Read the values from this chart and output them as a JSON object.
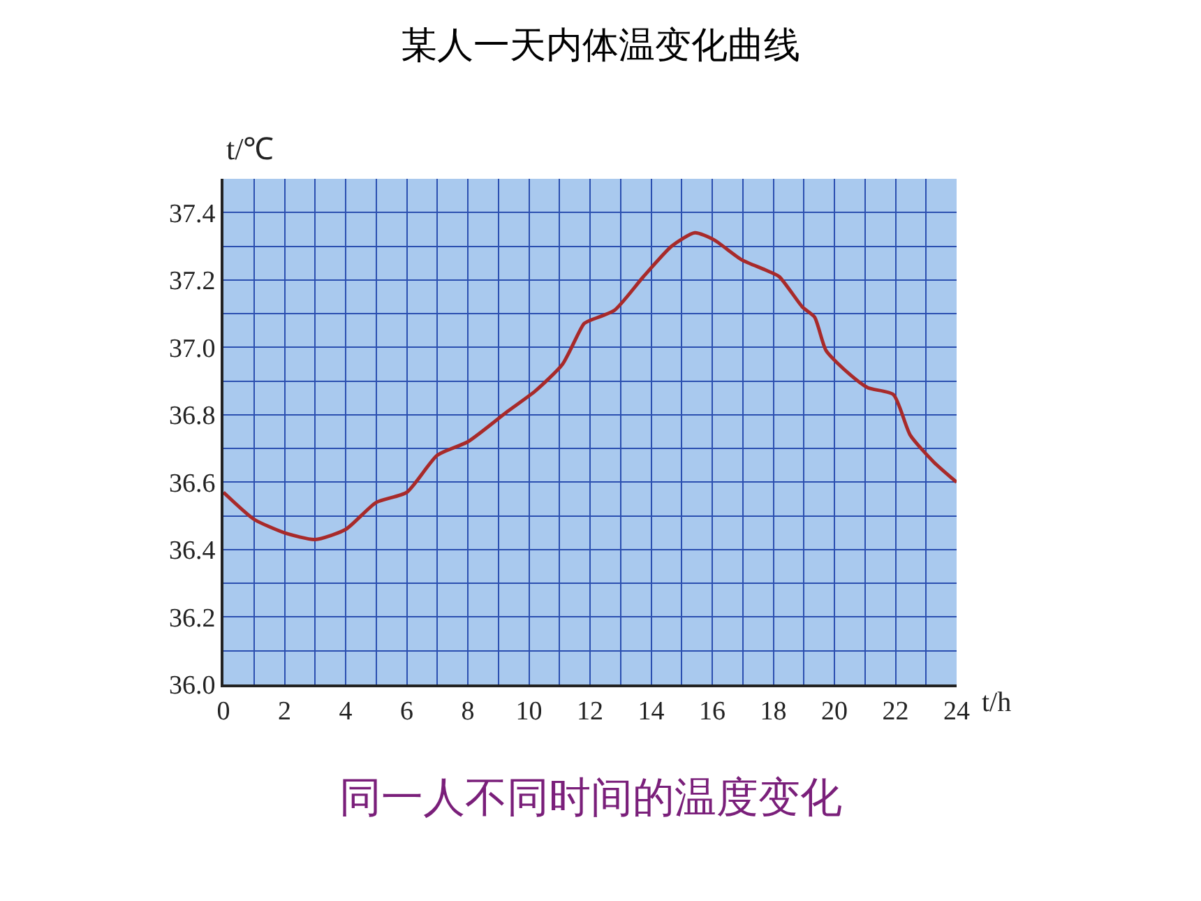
{
  "chart_data": {
    "type": "line",
    "title": "某人一天内体温变化曲线",
    "xlabel": "t/h",
    "ylabel": "t/℃",
    "annotations": [
      "同一人不同时间的温度变化"
    ],
    "series": [
      {
        "color": "#a82a2a",
        "x": [
          0,
          1,
          2,
          3,
          4,
          5,
          6,
          7,
          8,
          9.3,
          10.2,
          11.1,
          11.8,
          12,
          12.8,
          13.75,
          14.67,
          15.43,
          16.04,
          16.96,
          17.73,
          18.19,
          18.95,
          19.35,
          19.73,
          20.5,
          21.1,
          21.93,
          22.48,
          23.25,
          24
        ],
        "values": [
          36.57,
          36.49,
          36.45,
          36.43,
          36.46,
          36.54,
          36.57,
          36.68,
          36.72,
          36.81,
          36.87,
          36.95,
          37.07,
          37.08,
          37.11,
          37.21,
          37.3,
          37.34,
          37.32,
          37.26,
          37.23,
          37.21,
          37.12,
          37.09,
          36.99,
          36.92,
          36.88,
          36.86,
          36.74,
          36.66,
          36.6
        ]
      }
    ],
    "xlim": [
      0,
      24
    ],
    "xticks": [
      0,
      {
        "value": 1,
        "label": null
      },
      2,
      {
        "value": 3,
        "label": null
      },
      4,
      {
        "value": 5,
        "label": null
      },
      6,
      {
        "value": 7,
        "label": null
      },
      8,
      {
        "value": 9,
        "label": null
      },
      10,
      {
        "value": 11,
        "label": null
      },
      12,
      {
        "value": 13,
        "label": null
      },
      14,
      {
        "value": 15,
        "label": null
      },
      16,
      {
        "value": 17,
        "label": null
      },
      18,
      {
        "value": 19,
        "label": null
      },
      20,
      {
        "value": 21,
        "label": null
      },
      22,
      {
        "value": 23,
        "label": null
      },
      24
    ],
    "ylim": [
      36.0,
      37.5
    ],
    "yticks": [
      {
        "value": 36.0,
        "label": "36.0"
      },
      {
        "value": 36.1,
        "label": null
      },
      36.2,
      {
        "value": 36.3,
        "label": null
      },
      36.4,
      {
        "value": 36.5,
        "label": null
      },
      36.6,
      {
        "value": 36.7,
        "label": null
      },
      36.8,
      {
        "value": 36.9,
        "label": null
      },
      {
        "value": 37.0,
        "label": "37.0"
      },
      {
        "value": 37.1,
        "label": null
      },
      37.2,
      {
        "value": 37.3,
        "label": null
      },
      37.4,
      {
        "value": 37.5,
        "label": null
      }
    ],
    "grid": true,
    "marker": "none",
    "line_style": "solid"
  }
}
